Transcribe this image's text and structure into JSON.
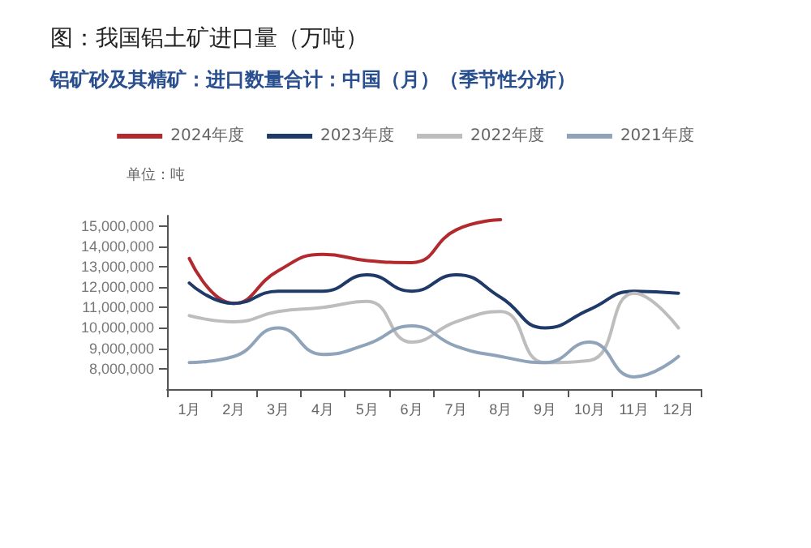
{
  "chart_data": {
    "type": "line",
    "title": "图：我国铝土矿进口量（万吨）",
    "subtitle": "铝矿砂及其精矿：进口数量合计：中国（月）（季节性分析）",
    "ylabel": "单位：吨",
    "categories": [
      "1月",
      "2月",
      "3月",
      "4月",
      "5月",
      "6月",
      "7月",
      "8月",
      "9月",
      "10月",
      "11月",
      "12月"
    ],
    "series": [
      {
        "name": "2024年度",
        "color": "#b22a2e",
        "values": [
          13400000,
          11200000,
          12800000,
          13600000,
          13300000,
          13200000,
          14800000,
          15300000,
          null,
          null,
          null,
          null
        ]
      },
      {
        "name": "2023年度",
        "color": "#1f3a68",
        "values": [
          12200000,
          11200000,
          11800000,
          11800000,
          12600000,
          11800000,
          12600000,
          11500000,
          10000000,
          10900000,
          11800000,
          11700000
        ]
      },
      {
        "name": "2022年度",
        "color": "#bdbdbd",
        "values": [
          10600000,
          10300000,
          10800000,
          11000000,
          11300000,
          9300000,
          10300000,
          10800000,
          8300000,
          8400000,
          11700000,
          10000000
        ]
      },
      {
        "name": "2021年度",
        "color": "#8fa3ba",
        "values": [
          8300000,
          8600000,
          10000000,
          8700000,
          9200000,
          10100000,
          9100000,
          8600000,
          8300000,
          9300000,
          7600000,
          8600000
        ]
      }
    ],
    "ylim": [
      7000000,
      15500000
    ],
    "yticks": [
      {
        "value": 8000000,
        "label": "8,000,000"
      },
      {
        "value": 9000000,
        "label": "9,000,000"
      },
      {
        "value": 10000000,
        "label": "10,000,000"
      },
      {
        "value": 11000000,
        "label": "11,000,000"
      },
      {
        "value": 12000000,
        "label": "12,000,000"
      },
      {
        "value": 13000000,
        "label": "13,000,000"
      },
      {
        "value": 14000000,
        "label": "14,000,000"
      },
      {
        "value": 15000000,
        "label": "15,000,000"
      }
    ],
    "grid": false,
    "legend": "top",
    "marker": "none",
    "line_style": "solid"
  }
}
